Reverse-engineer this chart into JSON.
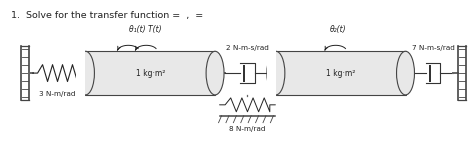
{
  "title_text": "1.  Solve for the transfer function",
  "title_suffix": " =  ,  =",
  "background_color": "#ffffff",
  "text_color": "#222222",
  "label_theta1": "θ₁(t) T(t)",
  "label_theta2": "θ₂(t)",
  "label_J1": "1 kg·m²",
  "label_J2": "1 kg·m²",
  "label_K1": "3 N-m/rad",
  "label_K2": "8 N-m/rad",
  "label_D1": "2 N-m-s/rad",
  "label_D2": "7 N-m-s/rad",
  "wall_color": "#444444",
  "shaft_color": "#666666",
  "cylinder_face": "#e8e8e8",
  "cylinder_edge": "#444444",
  "spring_color": "#222222",
  "damper_color": "#333333",
  "lw_main": 0.9,
  "lw_thin": 0.6
}
